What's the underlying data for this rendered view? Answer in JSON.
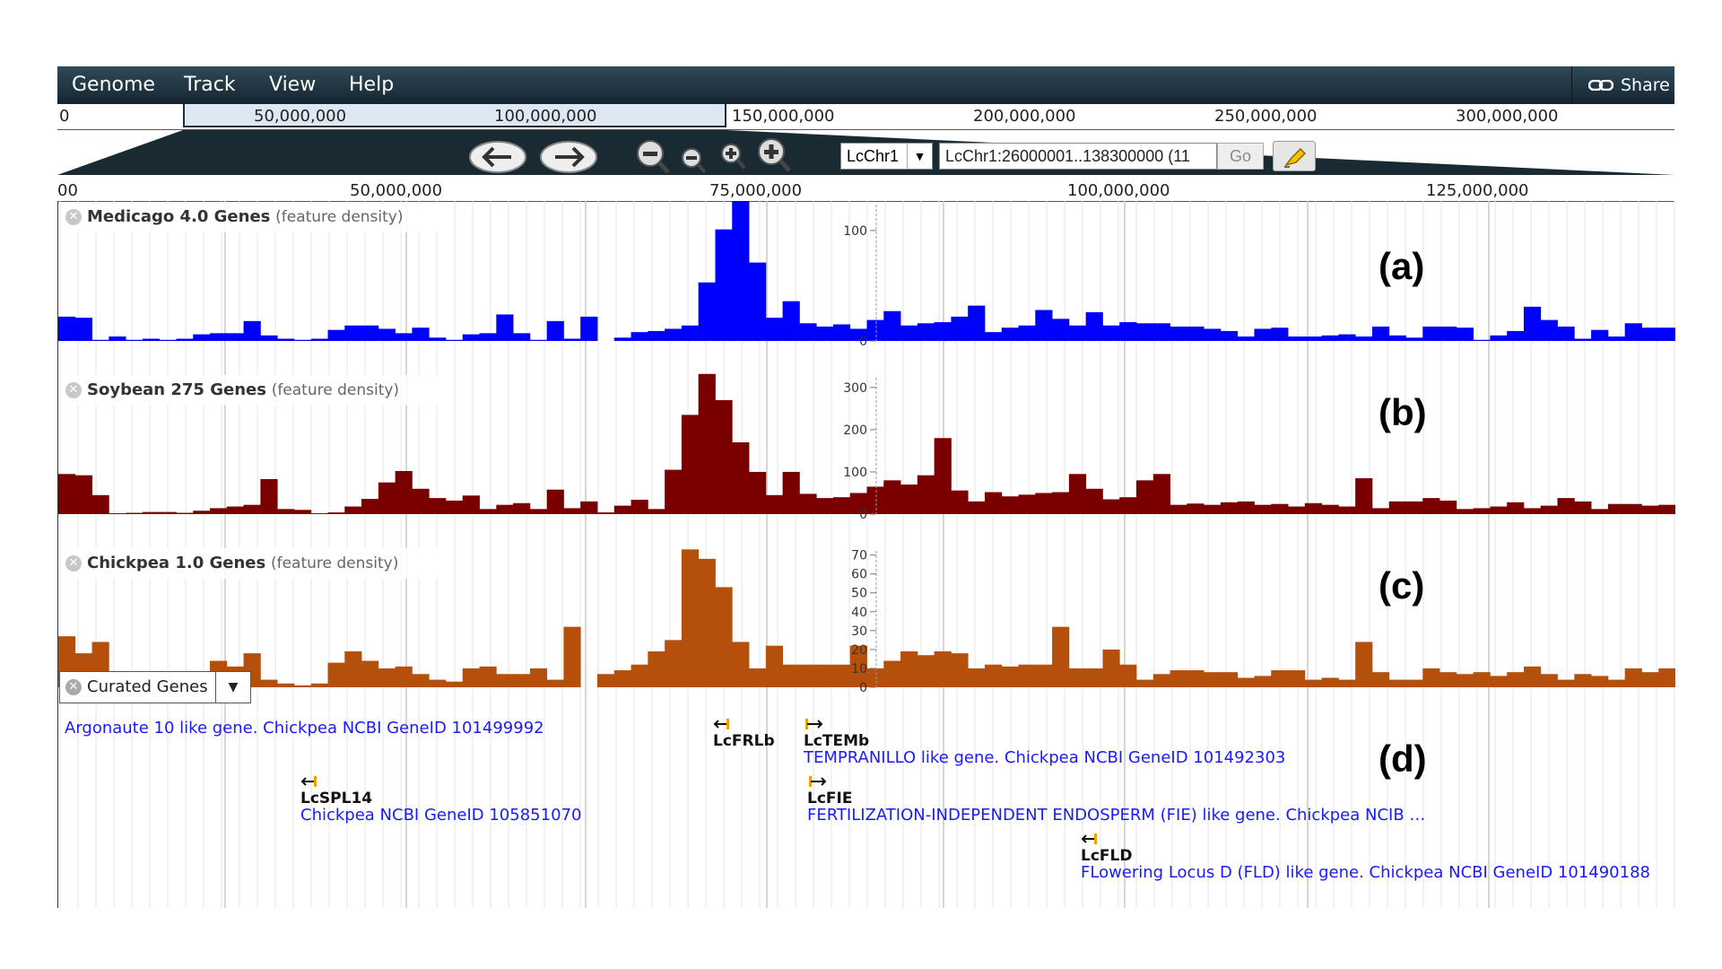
{
  "menu": {
    "items": [
      "Genome",
      "Track",
      "View",
      "Help"
    ],
    "share_label": "Share"
  },
  "overview": {
    "ticks": [
      "0",
      "50,000,000",
      "100,000,000",
      "150,000,000",
      "200,000,000",
      "250,000,000",
      "300,000,000"
    ]
  },
  "navigation": {
    "chromosome": "LcChr1",
    "location": "LcChr1:26000001..138300000 (11",
    "go_label": "Go"
  },
  "ruler": {
    "ticks": [
      "00",
      "50,000,000",
      "75,000,000",
      "100,000,000",
      "125,000,000"
    ]
  },
  "tracks": [
    {
      "name": "Medicago 4.0 Genes",
      "sub": "(feature density)",
      "tag": "(a)",
      "color": "#0000ff",
      "axis_ticks": [
        "100",
        "0"
      ],
      "max": 130,
      "values": [
        22,
        21,
        1,
        4,
        1,
        2,
        1,
        2,
        6,
        7,
        7,
        18,
        5,
        2,
        1,
        2,
        10,
        14,
        14,
        11,
        7,
        12,
        3,
        1,
        6,
        7,
        24,
        7,
        1,
        18,
        2,
        22,
        0,
        3,
        8,
        9,
        11,
        14,
        53,
        101,
        130,
        71,
        21,
        36,
        16,
        13,
        15,
        11,
        19,
        27,
        14,
        16,
        17,
        22,
        32,
        8,
        12,
        14,
        28,
        20,
        14,
        26,
        14,
        17,
        16,
        16,
        13,
        13,
        11,
        9,
        4,
        11,
        12,
        4,
        4,
        5,
        6,
        4,
        13,
        5,
        3,
        13,
        13,
        12,
        1,
        5,
        9,
        31,
        19,
        13,
        2,
        10,
        4,
        16,
        12,
        12
      ],
      "gaps": [
        32
      ]
    },
    {
      "name": "Soybean 275 Genes",
      "sub": "(feature density)",
      "tag": "(b)",
      "color": "#7a0000",
      "axis_ticks": [
        "300",
        "200",
        "100",
        "0"
      ],
      "max": 340,
      "values": [
        95,
        92,
        45,
        2,
        3,
        5,
        5,
        3,
        8,
        14,
        18,
        22,
        83,
        12,
        10,
        2,
        4,
        18,
        36,
        75,
        102,
        60,
        38,
        32,
        44,
        12,
        22,
        26,
        12,
        58,
        14,
        30,
        4,
        20,
        34,
        12,
        105,
        235,
        332,
        270,
        170,
        100,
        45,
        100,
        48,
        38,
        40,
        50,
        65,
        80,
        70,
        92,
        180,
        56,
        30,
        52,
        42,
        46,
        50,
        52,
        95,
        60,
        35,
        40,
        80,
        95,
        22,
        25,
        22,
        28,
        30,
        22,
        24,
        18,
        26,
        22,
        18,
        85,
        14,
        30,
        30,
        38,
        32,
        12,
        14,
        18,
        28,
        14,
        20,
        38,
        30,
        12,
        24,
        24,
        20,
        22
      ],
      "gaps": []
    },
    {
      "name": "Chickpea 1.0 Genes",
      "sub": "(feature density)",
      "tag": "(c)",
      "color": "#b5500c",
      "axis_ticks": [
        "70",
        "60",
        "50",
        "40",
        "30",
        "20",
        "10",
        "0"
      ],
      "max": 76,
      "values": [
        27,
        18,
        24,
        0,
        2,
        3,
        3,
        1,
        2,
        14,
        11,
        18,
        4,
        2,
        1,
        2,
        13,
        19,
        14,
        10,
        11,
        7,
        4,
        3,
        10,
        11,
        7,
        7,
        10,
        4,
        32,
        0,
        7,
        9,
        12,
        19,
        25,
        73,
        68,
        53,
        24,
        10,
        22,
        12,
        12,
        12,
        12,
        22,
        10,
        14,
        19,
        17,
        19,
        18,
        10,
        12,
        11,
        12,
        12,
        32,
        10,
        10,
        20,
        12,
        4,
        7,
        9,
        9,
        8,
        8,
        5,
        6,
        9,
        9,
        4,
        5,
        4,
        24,
        8,
        4,
        4,
        10,
        8,
        7,
        8,
        6,
        8,
        11,
        7,
        4,
        7,
        6,
        4,
        10,
        8,
        10
      ],
      "gaps": [
        31
      ]
    }
  ],
  "curated": {
    "label": "Curated Genes",
    "tag": "(d)",
    "genes": [
      {
        "name": "",
        "desc": "Argonaute 10 like gene. Chickpea NCBI GeneID 101499992",
        "dir": "none"
      },
      {
        "name": "LcSPL14",
        "desc": "Chickpea NCBI GeneID 105851070",
        "dir": "left"
      },
      {
        "name": "LcFRLb",
        "desc": "",
        "dir": "left"
      },
      {
        "name": "LcTEMb",
        "desc": "TEMPRANILLO like gene. Chickpea NCBI GeneID 101492303",
        "dir": "right"
      },
      {
        "name": "LcFIE",
        "desc": "FERTILIZATION-INDEPENDENT ENDOSPERM (FIE) like gene. Chickpea NCIB …",
        "dir": "right"
      },
      {
        "name": "LcFLD",
        "desc": "FLowering Locus D (FLD) like gene. Chickpea NCBI GeneID 101490188",
        "dir": "left"
      }
    ]
  }
}
